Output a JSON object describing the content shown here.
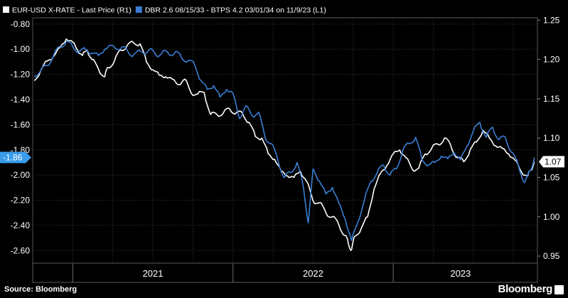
{
  "chart_data": {
    "type": "line",
    "legend_placement": "top-left",
    "grid": true,
    "source": "Source: Bloomberg",
    "brand": "Bloomberg",
    "series": [
      {
        "name": "EUR-USD X-RATE - Last Price (R1)",
        "axis": "right",
        "color": "#ffffff",
        "points": [
          [
            2020.76,
            1.173
          ],
          [
            2020.8,
            1.186
          ],
          [
            2020.84,
            1.198
          ],
          [
            2020.88,
            1.204
          ],
          [
            2020.92,
            1.215
          ],
          [
            2020.96,
            1.226
          ],
          [
            2021.0,
            1.222
          ],
          [
            2021.03,
            1.212
          ],
          [
            2021.06,
            1.205
          ],
          [
            2021.09,
            1.212
          ],
          [
            2021.12,
            1.2
          ],
          [
            2021.16,
            1.188
          ],
          [
            2021.2,
            1.178
          ],
          [
            2021.22,
            1.19
          ],
          [
            2021.26,
            1.198
          ],
          [
            2021.3,
            1.212
          ],
          [
            2021.34,
            1.218
          ],
          [
            2021.38,
            1.221
          ],
          [
            2021.42,
            1.22
          ],
          [
            2021.46,
            1.197
          ],
          [
            2021.5,
            1.187
          ],
          [
            2021.54,
            1.18
          ],
          [
            2021.58,
            1.178
          ],
          [
            2021.62,
            1.175
          ],
          [
            2021.66,
            1.168
          ],
          [
            2021.7,
            1.175
          ],
          [
            2021.74,
            1.157
          ],
          [
            2021.78,
            1.156
          ],
          [
            2021.82,
            1.158
          ],
          [
            2021.86,
            1.13
          ],
          [
            2021.9,
            1.13
          ],
          [
            2021.94,
            1.132
          ],
          [
            2021.98,
            1.137
          ],
          [
            2022.02,
            1.132
          ],
          [
            2022.06,
            1.131
          ],
          [
            2022.1,
            1.12
          ],
          [
            2022.14,
            1.102
          ],
          [
            2022.18,
            1.1
          ],
          [
            2022.22,
            1.08
          ],
          [
            2022.26,
            1.073
          ],
          [
            2022.3,
            1.058
          ],
          [
            2022.34,
            1.052
          ],
          [
            2022.38,
            1.05
          ],
          [
            2022.42,
            1.058
          ],
          [
            2022.46,
            1.045
          ],
          [
            2022.5,
            1.02
          ],
          [
            2022.54,
            1.018
          ],
          [
            2022.58,
            1.005
          ],
          [
            2022.62,
            1.0
          ],
          [
            2022.66,
            0.99
          ],
          [
            2022.7,
            0.976
          ],
          [
            2022.72,
            0.966
          ],
          [
            2022.74,
            0.958
          ],
          [
            2022.76,
            0.975
          ],
          [
            2022.8,
            0.985
          ],
          [
            2022.84,
            1.0
          ],
          [
            2022.88,
            1.035
          ],
          [
            2022.92,
            1.055
          ],
          [
            2022.96,
            1.065
          ],
          [
            2023.0,
            1.08
          ],
          [
            2023.04,
            1.085
          ],
          [
            2023.08,
            1.075
          ],
          [
            2023.12,
            1.06
          ],
          [
            2023.16,
            1.062
          ],
          [
            2023.2,
            1.08
          ],
          [
            2023.24,
            1.087
          ],
          [
            2023.28,
            1.092
          ],
          [
            2023.32,
            1.1
          ],
          [
            2023.36,
            1.09
          ],
          [
            2023.4,
            1.075
          ],
          [
            2023.44,
            1.07
          ],
          [
            2023.48,
            1.085
          ],
          [
            2023.52,
            1.095
          ],
          [
            2023.56,
            1.11
          ],
          [
            2023.6,
            1.1
          ],
          [
            2023.64,
            1.09
          ],
          [
            2023.68,
            1.087
          ],
          [
            2023.72,
            1.08
          ],
          [
            2023.76,
            1.072
          ],
          [
            2023.8,
            1.057
          ],
          [
            2023.84,
            1.052
          ],
          [
            2023.86,
            1.06
          ],
          [
            2023.88,
            1.07
          ]
        ]
      },
      {
        "name": "DBR 2.6 08/15/33 - BTPS 4.2 03/01/34 on 11/9/23 (L1)",
        "axis": "left",
        "color": "#3a7fd5",
        "points": [
          [
            2020.76,
            -1.21
          ],
          [
            2020.8,
            -1.17
          ],
          [
            2020.84,
            -1.13
          ],
          [
            2020.88,
            -1.05
          ],
          [
            2020.92,
            -0.98
          ],
          [
            2020.96,
            -0.94
          ],
          [
            2021.0,
            -0.98
          ],
          [
            2021.04,
            -1.02
          ],
          [
            2021.08,
            -1.0
          ],
          [
            2021.12,
            -1.03
          ],
          [
            2021.16,
            -1.05
          ],
          [
            2021.2,
            -1.0
          ],
          [
            2021.24,
            -0.97
          ],
          [
            2021.28,
            -1.0
          ],
          [
            2021.32,
            -0.98
          ],
          [
            2021.36,
            -1.05
          ],
          [
            2021.4,
            -1.02
          ],
          [
            2021.44,
            -1.03
          ],
          [
            2021.48,
            -1.0
          ],
          [
            2021.52,
            -1.05
          ],
          [
            2021.56,
            -1.02
          ],
          [
            2021.6,
            -1.04
          ],
          [
            2021.64,
            -1.02
          ],
          [
            2021.68,
            -1.07
          ],
          [
            2021.72,
            -1.09
          ],
          [
            2021.76,
            -1.12
          ],
          [
            2021.8,
            -1.25
          ],
          [
            2021.84,
            -1.32
          ],
          [
            2021.88,
            -1.29
          ],
          [
            2021.92,
            -1.38
          ],
          [
            2021.96,
            -1.32
          ],
          [
            2022.0,
            -1.35
          ],
          [
            2022.04,
            -1.55
          ],
          [
            2022.08,
            -1.45
          ],
          [
            2022.12,
            -1.53
          ],
          [
            2022.16,
            -1.5
          ],
          [
            2022.2,
            -1.7
          ],
          [
            2022.24,
            -1.75
          ],
          [
            2022.28,
            -1.88
          ],
          [
            2022.32,
            -2.02
          ],
          [
            2022.36,
            -1.98
          ],
          [
            2022.4,
            -1.9
          ],
          [
            2022.44,
            -2.1
          ],
          [
            2022.47,
            -2.38
          ],
          [
            2022.5,
            -1.95
          ],
          [
            2022.54,
            -2.05
          ],
          [
            2022.58,
            -2.15
          ],
          [
            2022.62,
            -2.1
          ],
          [
            2022.66,
            -2.22
          ],
          [
            2022.7,
            -2.35
          ],
          [
            2022.74,
            -2.52
          ],
          [
            2022.78,
            -2.37
          ],
          [
            2022.82,
            -2.2
          ],
          [
            2022.86,
            -2.05
          ],
          [
            2022.9,
            -1.98
          ],
          [
            2022.94,
            -1.92
          ],
          [
            2022.98,
            -2.0
          ],
          [
            2023.02,
            -1.95
          ],
          [
            2023.06,
            -1.8
          ],
          [
            2023.1,
            -1.75
          ],
          [
            2023.14,
            -1.7
          ],
          [
            2023.18,
            -1.88
          ],
          [
            2023.22,
            -1.92
          ],
          [
            2023.26,
            -1.9
          ],
          [
            2023.3,
            -1.85
          ],
          [
            2023.34,
            -1.87
          ],
          [
            2023.38,
            -1.82
          ],
          [
            2023.42,
            -1.88
          ],
          [
            2023.46,
            -1.77
          ],
          [
            2023.5,
            -1.65
          ],
          [
            2023.54,
            -1.58
          ],
          [
            2023.58,
            -1.7
          ],
          [
            2023.62,
            -1.62
          ],
          [
            2023.66,
            -1.72
          ],
          [
            2023.7,
            -1.7
          ],
          [
            2023.74,
            -1.82
          ],
          [
            2023.78,
            -1.92
          ],
          [
            2023.82,
            -2.06
          ],
          [
            2023.86,
            -1.96
          ],
          [
            2023.88,
            -1.86
          ]
        ]
      }
    ],
    "left_axis": {
      "min": -2.7,
      "max": -0.75,
      "ticks": [
        -0.8,
        -1.0,
        -1.2,
        -1.4,
        -1.6,
        -1.8,
        -2.0,
        -2.2,
        -2.4,
        -2.6
      ],
      "tick_labels": [
        "-0.80",
        "-1.00",
        "-1.20",
        "-1.40",
        "-1.60",
        "-1.80",
        "-2.00",
        "-2.20",
        "-2.40",
        "-2.60"
      ],
      "last_value": -1.86,
      "last_label": "-1.86"
    },
    "right_axis": {
      "min": 0.941,
      "max": 1.253,
      "ticks": [
        1.25,
        1.2,
        1.15,
        1.1,
        1.05,
        1.0,
        0.95
      ],
      "tick_labels": [
        "1.25",
        "1.20",
        "1.15",
        "1.10",
        "1.05",
        "1.00",
        "0.95"
      ],
      "last_value": 1.07,
      "last_label": "1.07"
    },
    "x_axis": {
      "min": 2020.75,
      "max": 2023.9,
      "year_boundaries": [
        2021.0,
        2022.0,
        2023.0
      ],
      "labels": [
        {
          "text": "2021",
          "x": 2021.5
        },
        {
          "text": "2022",
          "x": 2022.5
        },
        {
          "text": "2023",
          "x": 2023.42
        }
      ]
    }
  }
}
